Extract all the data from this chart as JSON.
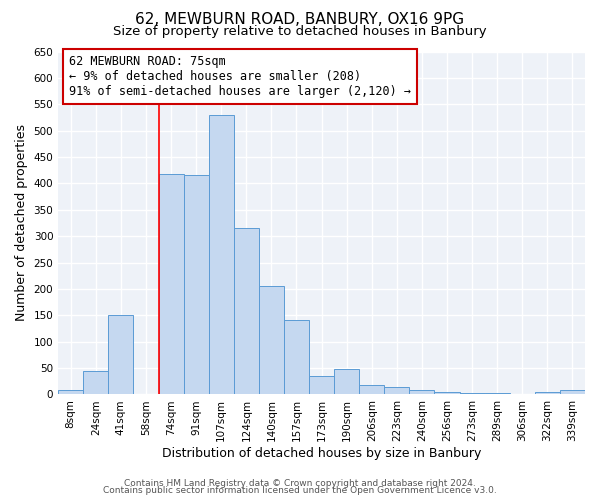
{
  "title": "62, MEWBURN ROAD, BANBURY, OX16 9PG",
  "subtitle": "Size of property relative to detached houses in Banbury",
  "xlabel": "Distribution of detached houses by size in Banbury",
  "ylabel": "Number of detached properties",
  "categories": [
    "8sqm",
    "24sqm",
    "41sqm",
    "58sqm",
    "74sqm",
    "91sqm",
    "107sqm",
    "124sqm",
    "140sqm",
    "157sqm",
    "173sqm",
    "190sqm",
    "206sqm",
    "223sqm",
    "240sqm",
    "256sqm",
    "273sqm",
    "289sqm",
    "306sqm",
    "322sqm",
    "339sqm"
  ],
  "values": [
    8,
    45,
    150,
    0,
    418,
    415,
    530,
    315,
    205,
    142,
    35,
    48,
    17,
    15,
    8,
    5,
    3,
    2,
    0,
    5,
    8
  ],
  "bar_color": "#c5d8f0",
  "bar_edge_color": "#5b9bd5",
  "red_line_index": 4,
  "annotation_text": "62 MEWBURN ROAD: 75sqm\n← 9% of detached houses are smaller (208)\n91% of semi-detached houses are larger (2,120) →",
  "annotation_box_color": "#ffffff",
  "annotation_box_edge_color": "#cc0000",
  "ylim": [
    0,
    650
  ],
  "yticks": [
    0,
    50,
    100,
    150,
    200,
    250,
    300,
    350,
    400,
    450,
    500,
    550,
    600,
    650
  ],
  "footer1": "Contains HM Land Registry data © Crown copyright and database right 2024.",
  "footer2": "Contains public sector information licensed under the Open Government Licence v3.0.",
  "bg_color": "#ffffff",
  "plot_bg_color": "#eef2f8",
  "title_fontsize": 11,
  "subtitle_fontsize": 9.5,
  "axis_label_fontsize": 9,
  "tick_fontsize": 7.5,
  "annotation_fontsize": 8.5,
  "footer_fontsize": 6.5,
  "grid_color": "#ffffff",
  "grid_linewidth": 1.0
}
